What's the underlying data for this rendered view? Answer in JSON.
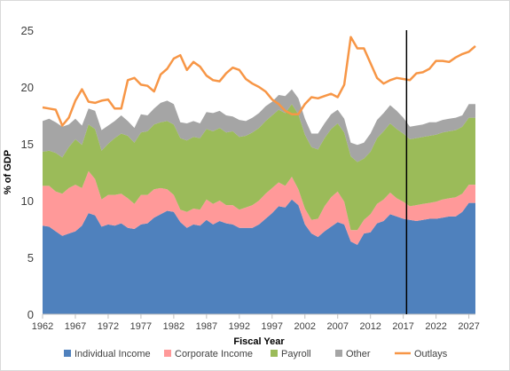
{
  "chart_data": {
    "type": "area",
    "title": "",
    "xlabel": "Fiscal Year",
    "ylabel": "% of GDP",
    "ylim": [
      0,
      25
    ],
    "xlim": [
      1962,
      2028
    ],
    "yticks": [
      "0",
      "5",
      "10",
      "15",
      "20",
      "25"
    ],
    "xticks": [
      "1962",
      "1967",
      "1972",
      "1977",
      "1982",
      "1987",
      "1992",
      "1997",
      "2002",
      "2007",
      "2012",
      "2017",
      "2022",
      "2027"
    ],
    "grid": false,
    "legend": "bottom",
    "marker_line_year": 2017.5,
    "x": [
      1962,
      1963,
      1964,
      1965,
      1966,
      1967,
      1968,
      1969,
      1970,
      1971,
      1972,
      1973,
      1974,
      1975,
      1976,
      1977,
      1978,
      1979,
      1980,
      1981,
      1982,
      1983,
      1984,
      1985,
      1986,
      1987,
      1988,
      1989,
      1990,
      1991,
      1992,
      1993,
      1994,
      1995,
      1996,
      1997,
      1998,
      1999,
      2000,
      2001,
      2002,
      2003,
      2004,
      2005,
      2006,
      2007,
      2008,
      2009,
      2010,
      2011,
      2012,
      2013,
      2014,
      2015,
      2016,
      2017,
      2018,
      2019,
      2020,
      2021,
      2022,
      2023,
      2024,
      2025,
      2026,
      2027,
      2028
    ],
    "series": [
      {
        "name": "Individual Income",
        "color": "#4f81bd",
        "values": [
          7.8,
          7.7,
          7.3,
          6.9,
          7.1,
          7.3,
          7.8,
          8.9,
          8.7,
          7.7,
          7.9,
          7.8,
          8.0,
          7.6,
          7.5,
          7.9,
          8.0,
          8.5,
          8.8,
          9.1,
          9.0,
          8.1,
          7.6,
          7.9,
          7.8,
          8.3,
          7.9,
          8.2,
          8.0,
          7.9,
          7.6,
          7.6,
          7.6,
          7.9,
          8.4,
          8.9,
          9.5,
          9.4,
          10.1,
          9.6,
          7.9,
          7.1,
          6.8,
          7.3,
          7.7,
          8.1,
          7.9,
          6.4,
          6.1,
          7.1,
          7.2,
          8.0,
          8.2,
          8.8,
          8.6,
          8.4,
          8.3,
          8.2,
          8.3,
          8.4,
          8.4,
          8.5,
          8.6,
          8.6,
          9.0,
          9.8,
          9.8
        ]
      },
      {
        "name": "Corporate Income",
        "color": "#ff9999",
        "values": [
          3.5,
          3.6,
          3.5,
          3.7,
          4.0,
          4.1,
          3.3,
          3.7,
          3.2,
          2.4,
          2.6,
          2.7,
          2.6,
          2.6,
          2.2,
          2.6,
          2.5,
          2.5,
          2.3,
          1.9,
          1.5,
          1.1,
          1.4,
          1.4,
          1.4,
          1.8,
          1.8,
          1.8,
          1.6,
          1.7,
          1.6,
          1.8,
          2.0,
          2.1,
          2.2,
          2.2,
          2.1,
          1.9,
          2.0,
          1.4,
          1.4,
          1.2,
          1.6,
          2.2,
          2.6,
          2.7,
          2.0,
          1.0,
          1.3,
          1.2,
          1.6,
          1.7,
          1.9,
          1.9,
          1.6,
          1.5,
          1.2,
          1.4,
          1.4,
          1.4,
          1.5,
          1.6,
          1.6,
          1.7,
          1.6,
          1.6,
          1.6
        ]
      },
      {
        "name": "Payroll",
        "color": "#9bbb59",
        "values": [
          3.0,
          3.1,
          3.4,
          3.2,
          3.6,
          4.0,
          3.8,
          4.1,
          4.4,
          4.3,
          4.5,
          5.0,
          5.3,
          5.5,
          5.4,
          5.5,
          5.6,
          5.7,
          5.8,
          6.0,
          6.2,
          6.3,
          6.3,
          6.3,
          6.3,
          6.2,
          6.4,
          6.4,
          6.4,
          6.5,
          6.4,
          6.3,
          6.4,
          6.4,
          6.4,
          6.4,
          6.4,
          6.4,
          6.4,
          6.6,
          6.5,
          6.4,
          6.1,
          6.0,
          6.0,
          6.0,
          6.1,
          6.5,
          6.0,
          5.4,
          5.5,
          5.8,
          6.0,
          6.1,
          6.1,
          6.0,
          5.9,
          5.9,
          5.9,
          5.9,
          5.9,
          5.9,
          5.9,
          5.9,
          5.9,
          5.9,
          5.9
        ]
      },
      {
        "name": "Other",
        "color": "#a5a5a5",
        "values": [
          2.7,
          2.8,
          2.7,
          2.7,
          2.0,
          1.8,
          1.7,
          1.4,
          1.6,
          1.8,
          1.6,
          1.5,
          1.6,
          1.3,
          1.3,
          1.6,
          1.4,
          1.4,
          1.7,
          1.8,
          1.8,
          1.4,
          1.5,
          1.4,
          1.3,
          1.5,
          1.6,
          1.5,
          1.5,
          1.3,
          1.5,
          1.3,
          1.3,
          1.3,
          1.3,
          1.2,
          1.3,
          1.5,
          1.3,
          1.4,
          1.4,
          1.2,
          1.4,
          1.3,
          1.3,
          1.2,
          1.2,
          1.2,
          1.5,
          1.4,
          1.6,
          1.6,
          1.6,
          1.6,
          1.6,
          1.4,
          1.1,
          1.1,
          1.1,
          1.2,
          1.1,
          1.1,
          1.1,
          1.1,
          1.0,
          1.2,
          1.2
        ]
      }
    ],
    "line": {
      "name": "Outlays",
      "color": "#f79646",
      "values": [
        18.2,
        18.1,
        18.0,
        16.6,
        17.3,
        18.8,
        19.8,
        18.7,
        18.6,
        18.8,
        18.9,
        18.1,
        18.1,
        20.6,
        20.8,
        20.2,
        20.1,
        19.6,
        21.1,
        21.6,
        22.5,
        22.8,
        21.5,
        22.2,
        21.8,
        21.0,
        20.6,
        20.5,
        21.2,
        21.7,
        21.5,
        20.7,
        20.3,
        20.0,
        19.6,
        18.9,
        18.5,
        17.9,
        17.6,
        17.6,
        18.5,
        19.1,
        19.0,
        19.2,
        19.4,
        19.1,
        20.2,
        24.4,
        23.4,
        23.4,
        22.1,
        20.8,
        20.3,
        20.6,
        20.8,
        20.7,
        20.6,
        21.2,
        21.3,
        21.6,
        22.3,
        22.3,
        22.2,
        22.6,
        22.9,
        23.1,
        23.6
      ]
    }
  }
}
